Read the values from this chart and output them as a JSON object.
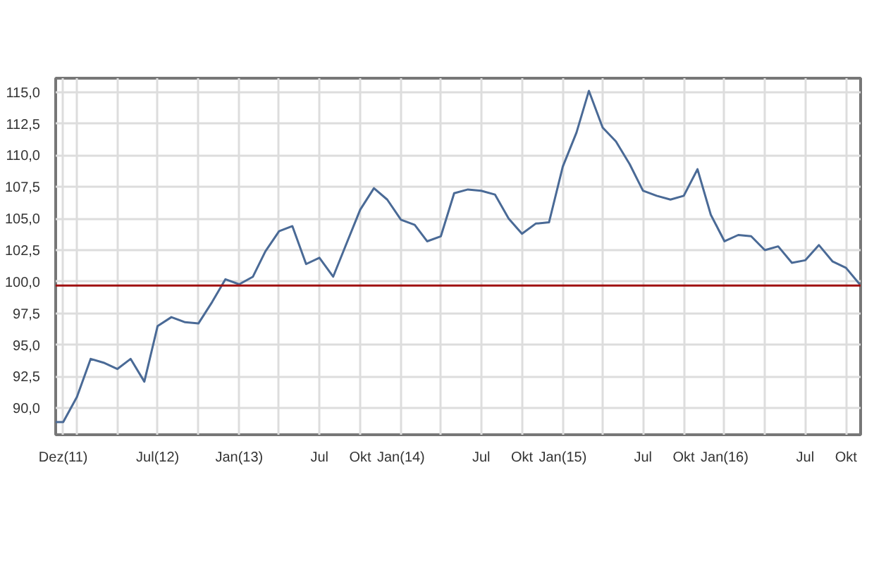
{
  "chart_data": {
    "type": "line",
    "x": [
      "2011-11-14",
      "2011-12",
      "2012-01",
      "2012-02",
      "2012-03",
      "2012-04",
      "2012-05",
      "2012-06",
      "2012-07",
      "2012-08",
      "2012-09",
      "2012-10",
      "2012-11",
      "2012-12",
      "2013-01",
      "2013-02",
      "2013-03",
      "2013-04",
      "2013-05",
      "2013-06",
      "2013-07",
      "2013-08",
      "2013-09",
      "2013-10",
      "2013-11",
      "2013-12",
      "2014-01",
      "2014-02",
      "2014-03",
      "2014-04",
      "2014-05",
      "2014-06",
      "2014-07",
      "2014-08",
      "2014-09",
      "2014-10",
      "2014-11",
      "2014-12",
      "2015-01",
      "2015-02",
      "2015-03",
      "2015-04",
      "2015-05",
      "2015-06",
      "2015-07",
      "2015-08",
      "2015-09",
      "2015-10",
      "2015-11",
      "2015-12",
      "2016-01",
      "2016-02",
      "2016-03",
      "2016-04",
      "2016-05",
      "2016-06",
      "2016-07",
      "2016-08",
      "2016-09",
      "2016-10",
      "2016-11"
    ],
    "series": [
      {
        "color": "#4a6a96",
        "values": [
          88.9,
          88.9,
          90.9,
          93.9,
          93.6,
          93.1,
          93.9,
          92.1,
          96.5,
          97.2,
          96.8,
          96.7,
          98.4,
          100.2,
          99.8,
          100.4,
          102.4,
          104.0,
          104.4,
          101.4,
          101.9,
          100.4,
          103.1,
          105.7,
          107.4,
          106.5,
          104.9,
          104.5,
          103.2,
          103.6,
          107.0,
          107.3,
          107.2,
          106.9,
          105.0,
          103.8,
          104.6,
          104.7,
          109.1,
          111.8,
          115.1,
          112.2,
          111.1,
          109.3,
          107.2,
          106.8,
          106.5,
          106.8,
          108.9,
          105.3,
          103.2,
          103.7,
          103.6,
          102.5,
          102.8,
          101.5,
          101.7,
          102.9,
          101.6,
          101.1,
          99.8
        ]
      }
    ],
    "xlim": [
      "2011-11-14",
      "2016-11-03"
    ],
    "xticks": [
      {
        "value": "2011-12",
        "label": "Dez(11)"
      },
      {
        "value": "2012-01",
        "label": null
      },
      {
        "value": "2012-04",
        "label": null
      },
      {
        "value": "2012-07",
        "label": "Jul(12)"
      },
      {
        "value": "2012-10",
        "label": null
      },
      {
        "value": "2013-01",
        "label": "Jan(13)"
      },
      {
        "value": "2013-04",
        "label": null
      },
      {
        "value": "2013-07",
        "label": "Jul"
      },
      {
        "value": "2013-10",
        "label": "Okt"
      },
      {
        "value": "2014-01",
        "label": "Jan(14)"
      },
      {
        "value": "2014-04",
        "label": null
      },
      {
        "value": "2014-07",
        "label": "Jul"
      },
      {
        "value": "2014-10",
        "label": "Okt"
      },
      {
        "value": "2015-01",
        "label": "Jan(15)"
      },
      {
        "value": "2015-04",
        "label": null
      },
      {
        "value": "2015-07",
        "label": "Jul"
      },
      {
        "value": "2015-10",
        "label": "Okt"
      },
      {
        "value": "2016-01",
        "label": "Jan(16)"
      },
      {
        "value": "2016-04",
        "label": null
      },
      {
        "value": "2016-07",
        "label": "Jul"
      },
      {
        "value": "2016-10",
        "label": "Okt"
      }
    ],
    "ylim": [
      87.9,
      116.1
    ],
    "yticks": [
      {
        "value": 90,
        "label": "90,0"
      },
      {
        "value": 92.5,
        "label": "92,5"
      },
      {
        "value": 95,
        "label": "95,0"
      },
      {
        "value": 97.5,
        "label": "97,5"
      },
      {
        "value": 100,
        "label": "100,0"
      },
      {
        "value": 102.5,
        "label": "102,5"
      },
      {
        "value": 105,
        "label": "105,0"
      },
      {
        "value": 107.5,
        "label": "107,5"
      },
      {
        "value": 110,
        "label": "110,0"
      },
      {
        "value": 112.5,
        "label": "112,5"
      },
      {
        "value": 115,
        "label": "115,0"
      }
    ],
    "ref_lines": [
      {
        "axis": "y",
        "value": 99.7,
        "label": null,
        "color": "#a01010"
      }
    ],
    "grid": true,
    "marker": "none",
    "line_style": "solid"
  }
}
